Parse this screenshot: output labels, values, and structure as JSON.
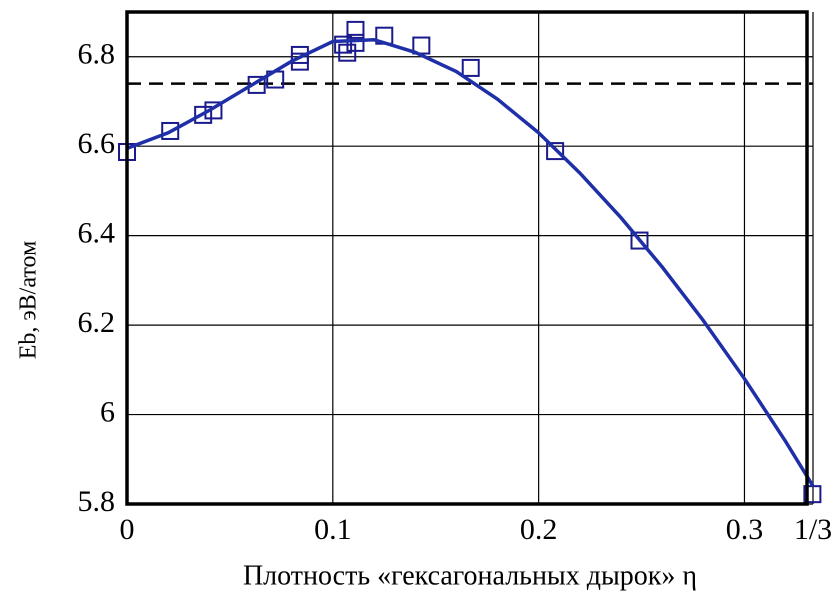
{
  "chart_data": {
    "type": "scatter",
    "xlabel": "Плотность  «гексагональных дырок» η",
    "ylabel": "Eb, эВ/атом",
    "xlim": [
      0,
      0.3333
    ],
    "ylim": [
      5.8,
      6.9
    ],
    "xticks": [
      0,
      0.1,
      0.2,
      0.3,
      {
        "value": 0.3333,
        "label": "1/3"
      }
    ],
    "yticks": [
      5.8,
      6,
      6.2,
      6.4,
      6.6,
      6.8
    ],
    "grid": true,
    "reference_line": {
      "y": 6.74,
      "color": "#000000",
      "style": "dashed"
    },
    "series": [
      {
        "kind": "points",
        "color": "#1a1a8c",
        "x": [
          0,
          0.021,
          0.037,
          0.042,
          0.063,
          0.072,
          0.084,
          0.084,
          0.105,
          0.107,
          0.111,
          0.111,
          0.125,
          0.143,
          0.167,
          0.208,
          0.249,
          0.333
        ],
        "values": [
          6.587,
          6.634,
          6.67,
          6.68,
          6.737,
          6.749,
          6.804,
          6.789,
          6.827,
          6.809,
          6.86,
          6.831,
          6.847,
          6.825,
          6.775,
          6.589,
          6.389,
          5.822
        ]
      },
      {
        "kind": "curve",
        "color": "#1f2fa8",
        "x": [
          0,
          0.02,
          0.04,
          0.06,
          0.08,
          0.1,
          0.12,
          0.14,
          0.16,
          0.18,
          0.2,
          0.22,
          0.24,
          0.26,
          0.28,
          0.3,
          0.32,
          0.3333
        ],
        "values": [
          6.595,
          6.63,
          6.68,
          6.735,
          6.79,
          6.834,
          6.838,
          6.81,
          6.767,
          6.705,
          6.63,
          6.54,
          6.44,
          6.33,
          6.21,
          6.08,
          5.94,
          5.84
        ]
      }
    ]
  }
}
